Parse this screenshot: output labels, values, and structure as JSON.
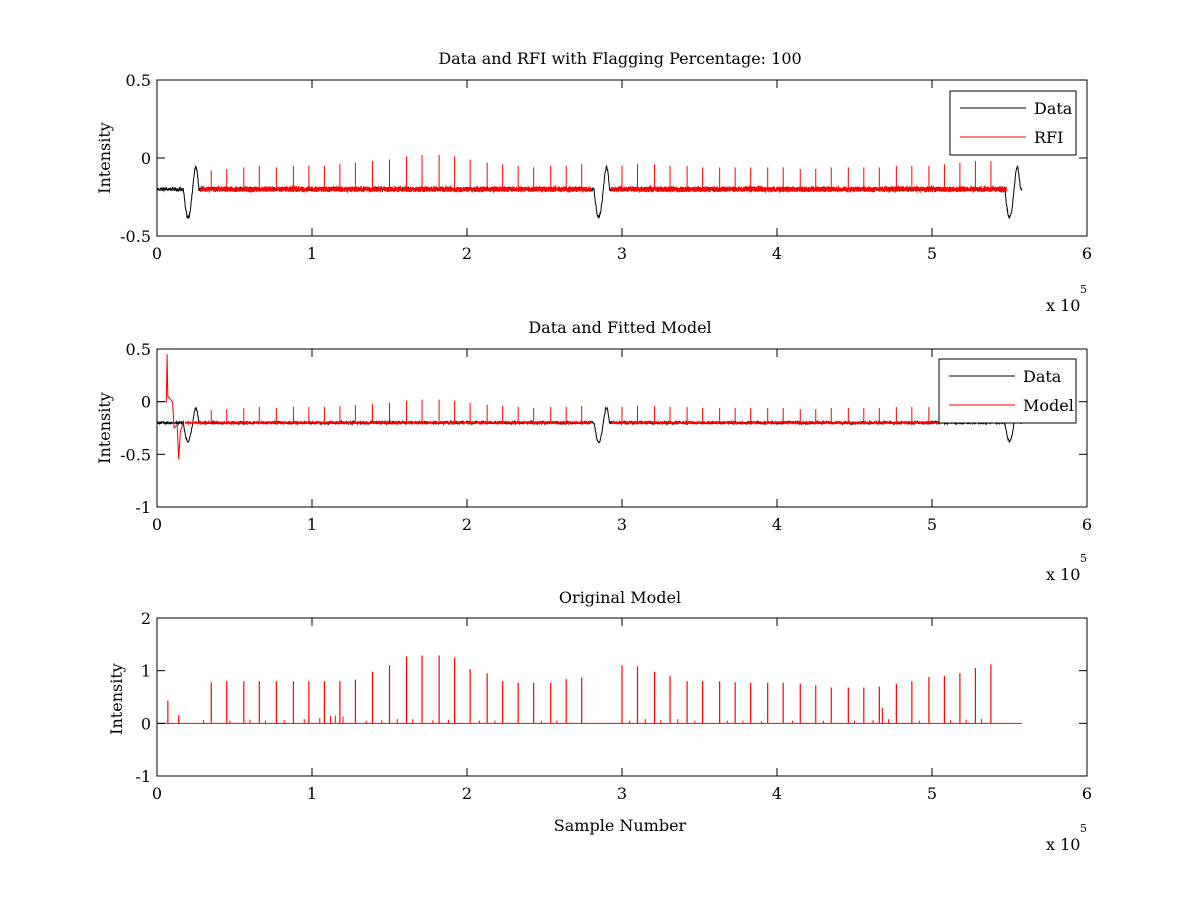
{
  "figure": {
    "background": "#ffffff",
    "axis_color": "#000000"
  },
  "chart_data": [
    {
      "type": "line",
      "title": "Data and RFI with Flagging Percentage: 100",
      "xlabel": "",
      "ylabel": "Intensity",
      "xlim": [
        0,
        6
      ],
      "ylim": [
        -0.5,
        0.5
      ],
      "xticks": [
        0,
        1,
        2,
        3,
        4,
        5,
        6
      ],
      "yticks": [
        -0.5,
        0,
        0.5
      ],
      "xtick_labels": [
        "0",
        "1",
        "2",
        "3",
        "4",
        "5",
        "6"
      ],
      "ytick_labels": [
        "-0.5",
        "0",
        "0.5"
      ],
      "exponent_base": "x 10",
      "exponent_power": "5",
      "legend": {
        "position": "top-right",
        "entries": [
          "Data",
          "RFI"
        ]
      },
      "series": [
        {
          "name": "Data",
          "color": "#000000",
          "baseline": -0.2,
          "noise": 0.012,
          "x_range": [
            0,
            5.58
          ],
          "dips": [
            {
              "x": 0.2,
              "depth": -0.18,
              "rise": 0.14
            },
            {
              "x": 2.85,
              "depth": -0.18,
              "rise": 0.14
            },
            {
              "x": 5.5,
              "depth": -0.18,
              "rise": 0.14
            }
          ]
        },
        {
          "name": "RFI",
          "color": "#ff0000",
          "baseline": -0.2,
          "noise": 0.018,
          "segments": [
            [
              0.28,
              2.8
            ],
            [
              2.93,
              5.48
            ]
          ],
          "spikes": [
            [
              0.35,
              0.12
            ],
            [
              0.45,
              0.13
            ],
            [
              0.56,
              0.14
            ],
            [
              0.66,
              0.15
            ],
            [
              0.77,
              0.14
            ],
            [
              0.88,
              0.15
            ],
            [
              0.98,
              0.15
            ],
            [
              1.08,
              0.15
            ],
            [
              1.18,
              0.16
            ],
            [
              1.28,
              0.17
            ],
            [
              1.39,
              0.18
            ],
            [
              1.5,
              0.19
            ],
            [
              1.61,
              0.21
            ],
            [
              1.71,
              0.22
            ],
            [
              1.82,
              0.22
            ],
            [
              1.92,
              0.21
            ],
            [
              2.02,
              0.19
            ],
            [
              2.13,
              0.17
            ],
            [
              2.23,
              0.16
            ],
            [
              2.33,
              0.15
            ],
            [
              2.43,
              0.14
            ],
            [
              2.54,
              0.15
            ],
            [
              2.64,
              0.15
            ],
            [
              2.74,
              0.16
            ],
            [
              3.0,
              0.15
            ],
            [
              3.1,
              0.16
            ],
            [
              3.21,
              0.16
            ],
            [
              3.31,
              0.15
            ],
            [
              3.42,
              0.15
            ],
            [
              3.52,
              0.14
            ],
            [
              3.63,
              0.14
            ],
            [
              3.73,
              0.14
            ],
            [
              3.83,
              0.14
            ],
            [
              3.94,
              0.14
            ],
            [
              4.04,
              0.14
            ],
            [
              4.15,
              0.13
            ],
            [
              4.25,
              0.13
            ],
            [
              4.35,
              0.14
            ],
            [
              4.46,
              0.14
            ],
            [
              4.56,
              0.14
            ],
            [
              4.66,
              0.14
            ],
            [
              4.77,
              0.15
            ],
            [
              4.87,
              0.15
            ],
            [
              4.98,
              0.15
            ],
            [
              5.08,
              0.16
            ],
            [
              5.18,
              0.17
            ],
            [
              5.28,
              0.18
            ],
            [
              5.38,
              0.18
            ]
          ]
        }
      ]
    },
    {
      "type": "line",
      "title": "Data and Fitted Model",
      "xlabel": "",
      "ylabel": "Intensity",
      "xlim": [
        0,
        6
      ],
      "ylim": [
        -1,
        0.5
      ],
      "xticks": [
        0,
        1,
        2,
        3,
        4,
        5,
        6
      ],
      "yticks": [
        -1,
        -0.5,
        0,
        0.5
      ],
      "xtick_labels": [
        "0",
        "1",
        "2",
        "3",
        "4",
        "5",
        "6"
      ],
      "ytick_labels": [
        "-1",
        "-0.5",
        "0",
        "0.5"
      ],
      "exponent_base": "x 10",
      "exponent_power": "5",
      "legend": {
        "position": "top-right",
        "entries": [
          "Data",
          "Model"
        ]
      },
      "series": [
        {
          "name": "Data",
          "color": "#000000",
          "baseline": -0.2,
          "noise": 0.012,
          "x_range": [
            0,
            5.58
          ],
          "dips": [
            {
              "x": 0.2,
              "depth": -0.18,
              "rise": 0.14
            },
            {
              "x": 2.85,
              "depth": -0.18,
              "rise": 0.14
            },
            {
              "x": 5.5,
              "depth": -0.18,
              "rise": 0.14
            }
          ]
        },
        {
          "name": "Model",
          "color": "#ff0000",
          "baseline": -0.2,
          "noise": 0.006,
          "segments": [
            [
              0.18,
              2.8
            ],
            [
              2.93,
              5.05
            ]
          ],
          "startup": [
            [
              0,
              0
            ],
            [
              0.06,
              0
            ],
            [
              0.065,
              0.45
            ],
            [
              0.07,
              0.05
            ],
            [
              0.1,
              0.0
            ],
            [
              0.11,
              -0.25
            ],
            [
              0.13,
              -0.22
            ],
            [
              0.14,
              -0.55
            ],
            [
              0.15,
              -0.28
            ],
            [
              0.17,
              -0.2
            ]
          ],
          "spikes": [
            [
              0.35,
              0.12
            ],
            [
              0.45,
              0.13
            ],
            [
              0.56,
              0.14
            ],
            [
              0.66,
              0.15
            ],
            [
              0.77,
              0.14
            ],
            [
              0.88,
              0.15
            ],
            [
              0.98,
              0.15
            ],
            [
              1.08,
              0.15
            ],
            [
              1.18,
              0.16
            ],
            [
              1.28,
              0.17
            ],
            [
              1.39,
              0.18
            ],
            [
              1.5,
              0.19
            ],
            [
              1.61,
              0.21
            ],
            [
              1.71,
              0.22
            ],
            [
              1.82,
              0.22
            ],
            [
              1.92,
              0.21
            ],
            [
              2.02,
              0.19
            ],
            [
              2.13,
              0.17
            ],
            [
              2.23,
              0.16
            ],
            [
              2.33,
              0.15
            ],
            [
              2.43,
              0.14
            ],
            [
              2.54,
              0.15
            ],
            [
              2.64,
              0.15
            ],
            [
              2.74,
              0.16
            ],
            [
              3.0,
              0.15
            ],
            [
              3.1,
              0.16
            ],
            [
              3.21,
              0.16
            ],
            [
              3.31,
              0.15
            ],
            [
              3.42,
              0.15
            ],
            [
              3.52,
              0.14
            ],
            [
              3.63,
              0.14
            ],
            [
              3.73,
              0.14
            ],
            [
              3.83,
              0.14
            ],
            [
              3.94,
              0.14
            ],
            [
              4.04,
              0.14
            ],
            [
              4.15,
              0.13
            ],
            [
              4.25,
              0.13
            ],
            [
              4.35,
              0.14
            ],
            [
              4.46,
              0.14
            ],
            [
              4.56,
              0.14
            ],
            [
              4.66,
              0.14
            ],
            [
              4.77,
              0.15
            ],
            [
              4.87,
              0.15
            ],
            [
              4.98,
              0.15
            ]
          ]
        }
      ]
    },
    {
      "type": "line",
      "title": "Original Model",
      "xlabel": "Sample Number",
      "ylabel": "Intensity",
      "xlim": [
        0,
        6
      ],
      "ylim": [
        -1,
        2
      ],
      "xticks": [
        0,
        1,
        2,
        3,
        4,
        5,
        6
      ],
      "yticks": [
        -1,
        0,
        1,
        2
      ],
      "xtick_labels": [
        "0",
        "1",
        "2",
        "3",
        "4",
        "5",
        "6"
      ],
      "ytick_labels": [
        "-1",
        "0",
        "1",
        "2"
      ],
      "exponent_base": "x 10",
      "exponent_power": "5",
      "legend": null,
      "series": [
        {
          "name": "Original Model",
          "color": "#ff0000",
          "baseline": 0,
          "x_range": [
            0,
            5.58
          ],
          "spikes": [
            [
              0.07,
              0.43
            ],
            [
              0.14,
              0.15
            ],
            [
              0.35,
              0.78
            ],
            [
              0.45,
              0.8
            ],
            [
              0.56,
              0.8
            ],
            [
              0.66,
              0.8
            ],
            [
              0.77,
              0.8
            ],
            [
              0.88,
              0.8
            ],
            [
              0.98,
              0.8
            ],
            [
              1.08,
              0.8
            ],
            [
              1.18,
              0.8
            ],
            [
              1.28,
              0.83
            ],
            [
              1.39,
              0.98
            ],
            [
              1.5,
              1.1
            ],
            [
              1.61,
              1.27
            ],
            [
              1.71,
              1.29
            ],
            [
              1.82,
              1.29
            ],
            [
              1.92,
              1.25
            ],
            [
              2.02,
              1.03
            ],
            [
              2.13,
              0.95
            ],
            [
              2.23,
              0.8
            ],
            [
              2.33,
              0.77
            ],
            [
              2.43,
              0.77
            ],
            [
              2.54,
              0.77
            ],
            [
              2.64,
              0.84
            ],
            [
              2.74,
              0.87
            ],
            [
              3.0,
              1.1
            ],
            [
              3.1,
              1.08
            ],
            [
              3.21,
              0.98
            ],
            [
              3.31,
              0.9
            ],
            [
              3.42,
              0.8
            ],
            [
              3.52,
              0.8
            ],
            [
              3.63,
              0.8
            ],
            [
              3.73,
              0.78
            ],
            [
              3.83,
              0.77
            ],
            [
              3.94,
              0.77
            ],
            [
              4.04,
              0.77
            ],
            [
              4.15,
              0.75
            ],
            [
              4.25,
              0.72
            ],
            [
              4.35,
              0.68
            ],
            [
              4.46,
              0.68
            ],
            [
              4.56,
              0.68
            ],
            [
              4.66,
              0.7
            ],
            [
              4.77,
              0.75
            ],
            [
              4.87,
              0.8
            ],
            [
              4.98,
              0.88
            ],
            [
              5.08,
              0.9
            ],
            [
              5.18,
              0.95
            ],
            [
              5.28,
              1.05
            ],
            [
              5.38,
              1.12
            ]
          ],
          "small_spikes": [
            [
              0.3,
              0.06
            ],
            [
              0.47,
              0.05
            ],
            [
              0.6,
              0.07
            ],
            [
              0.7,
              0.05
            ],
            [
              0.82,
              0.06
            ],
            [
              0.95,
              0.08
            ],
            [
              1.05,
              0.1
            ],
            [
              1.12,
              0.14
            ],
            [
              1.15,
              0.15
            ],
            [
              1.2,
              0.13
            ],
            [
              1.35,
              0.05
            ],
            [
              1.45,
              0.06
            ],
            [
              1.55,
              0.08
            ],
            [
              1.65,
              0.08
            ],
            [
              1.78,
              0.06
            ],
            [
              1.88,
              0.07
            ],
            [
              2.08,
              0.05
            ],
            [
              2.18,
              0.05
            ],
            [
              2.48,
              0.04
            ],
            [
              2.58,
              0.05
            ],
            [
              3.05,
              0.05
            ],
            [
              3.15,
              0.08
            ],
            [
              3.25,
              0.06
            ],
            [
              3.36,
              0.08
            ],
            [
              3.47,
              0.05
            ],
            [
              3.68,
              0.05
            ],
            [
              3.78,
              0.05
            ],
            [
              3.9,
              0.04
            ],
            [
              4.1,
              0.05
            ],
            [
              4.3,
              0.05
            ],
            [
              4.5,
              0.05
            ],
            [
              4.62,
              0.06
            ],
            [
              4.68,
              0.3
            ],
            [
              4.72,
              0.08
            ],
            [
              4.92,
              0.05
            ],
            [
              5.12,
              0.06
            ],
            [
              5.22,
              0.07
            ],
            [
              5.32,
              0.08
            ]
          ]
        }
      ]
    }
  ]
}
